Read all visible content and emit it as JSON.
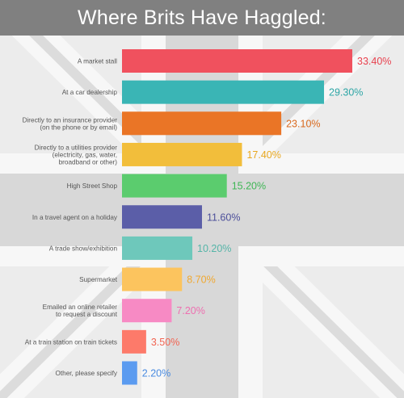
{
  "title": "Where Brits Have Haggled:",
  "chart_data": {
    "type": "bar",
    "orientation": "horizontal",
    "categories": [
      "A market stall",
      "At a car dealership",
      "Directly to an insurance provider\n(on the phone or by email)",
      "Directly to a utilities provider\n(electricity, gas, water,\nbroadband or other)",
      "High Street Shop",
      "In a travel agent on a holiday",
      "A trade show/exhibition",
      "Supermarket",
      "Emailed an online retailer\nto request a discount",
      "At a train station on train tickets",
      "Other, please specify"
    ],
    "values": [
      33.4,
      29.3,
      23.1,
      17.4,
      15.2,
      11.6,
      10.2,
      8.7,
      7.2,
      3.5,
      2.2
    ],
    "value_labels": [
      "33.40%",
      "29.30%",
      "23.10%",
      "17.40%",
      "15.20%",
      "11.60%",
      "10.20%",
      "8.70%",
      "7.20%",
      "3.50%",
      "2.20%"
    ],
    "colors": [
      "#f0515e",
      "#3ab5b5",
      "#ea7526",
      "#f2be3b",
      "#5bcc6e",
      "#5b5ea8",
      "#6ec8bb",
      "#fcc45e",
      "#f78ac4",
      "#fd7a6a",
      "#5b9bf0"
    ],
    "value_label_colors": [
      "#e8424f",
      "#2ea6a6",
      "#d96a1f",
      "#e8a820",
      "#3fb655",
      "#4c4f9a",
      "#55b5a8",
      "#f0a830",
      "#ee6fb0",
      "#f26452",
      "#4a8be0"
    ],
    "xlim": [
      0,
      35
    ],
    "grid": false,
    "legend": "none"
  }
}
